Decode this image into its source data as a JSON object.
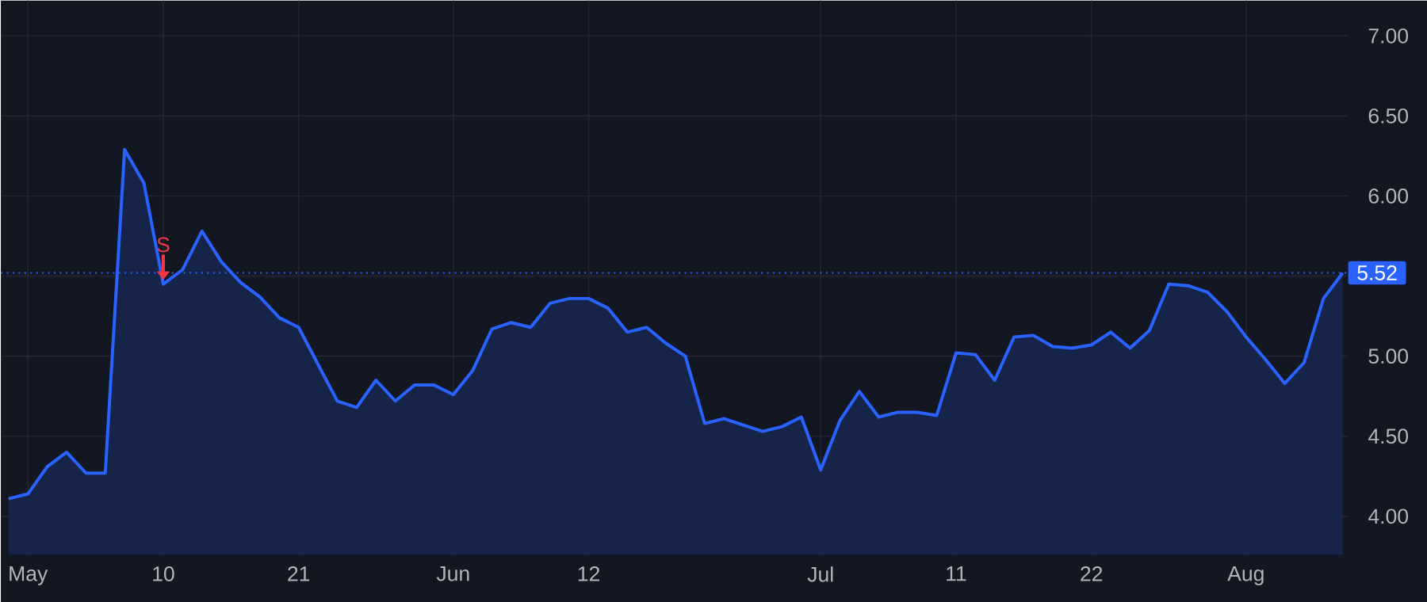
{
  "chart_data": {
    "type": "area",
    "categories": [
      null,
      "May",
      null,
      null,
      null,
      null,
      null,
      null,
      "10",
      null,
      null,
      null,
      null,
      null,
      null,
      "21",
      null,
      null,
      null,
      null,
      null,
      null,
      null,
      "Jun",
      null,
      null,
      null,
      null,
      null,
      null,
      "12",
      null,
      null,
      null,
      null,
      null,
      null,
      null,
      null,
      null,
      null,
      null,
      "Jul",
      null,
      null,
      null,
      null,
      null,
      null,
      "11",
      null,
      null,
      null,
      null,
      null,
      null,
      "22",
      null,
      null,
      null,
      null,
      null,
      null,
      null,
      "Aug",
      null,
      null,
      null,
      null,
      null
    ],
    "series": [
      {
        "color": "#2962ff",
        "values": [
          4.11,
          4.14,
          4.31,
          4.4,
          4.27,
          4.27,
          6.29,
          6.08,
          5.45,
          5.54,
          5.78,
          5.59,
          5.46,
          5.37,
          5.24,
          5.18,
          4.95,
          4.72,
          4.68,
          4.85,
          4.72,
          4.82,
          4.82,
          4.76,
          4.91,
          5.17,
          5.21,
          5.18,
          5.33,
          5.36,
          5.36,
          5.3,
          5.15,
          5.18,
          5.08,
          5.0,
          4.58,
          4.61,
          4.57,
          4.53,
          4.56,
          4.62,
          4.29,
          4.6,
          4.78,
          4.62,
          4.65,
          4.65,
          4.63,
          5.02,
          5.01,
          4.85,
          5.12,
          5.13,
          5.06,
          5.05,
          5.07,
          5.15,
          5.05,
          5.16,
          5.45,
          5.44,
          5.4,
          5.28,
          5.12,
          4.98,
          4.83,
          4.96,
          5.36,
          5.52
        ]
      }
    ],
    "ylim": [
      3.76,
      7.22
    ],
    "yticks": [
      {
        "value": 4,
        "label": "4.00"
      },
      {
        "value": 4.5,
        "label": "4.50"
      },
      {
        "value": 5,
        "label": "5.00"
      },
      {
        "value": 5.5,
        "label": null
      },
      {
        "value": 6,
        "label": "6.00"
      },
      {
        "value": 6.5,
        "label": "6.50"
      },
      {
        "value": 7,
        "label": "7.00"
      }
    ],
    "grid": true,
    "ref_lines": [
      {
        "axis": "y",
        "value": 5.52,
        "label": "5.52",
        "color": "#2962ff",
        "line_style": "dotted"
      }
    ],
    "annotations": [
      {
        "text": "S",
        "x": "10",
        "y": 5.45
      }
    ]
  }
}
